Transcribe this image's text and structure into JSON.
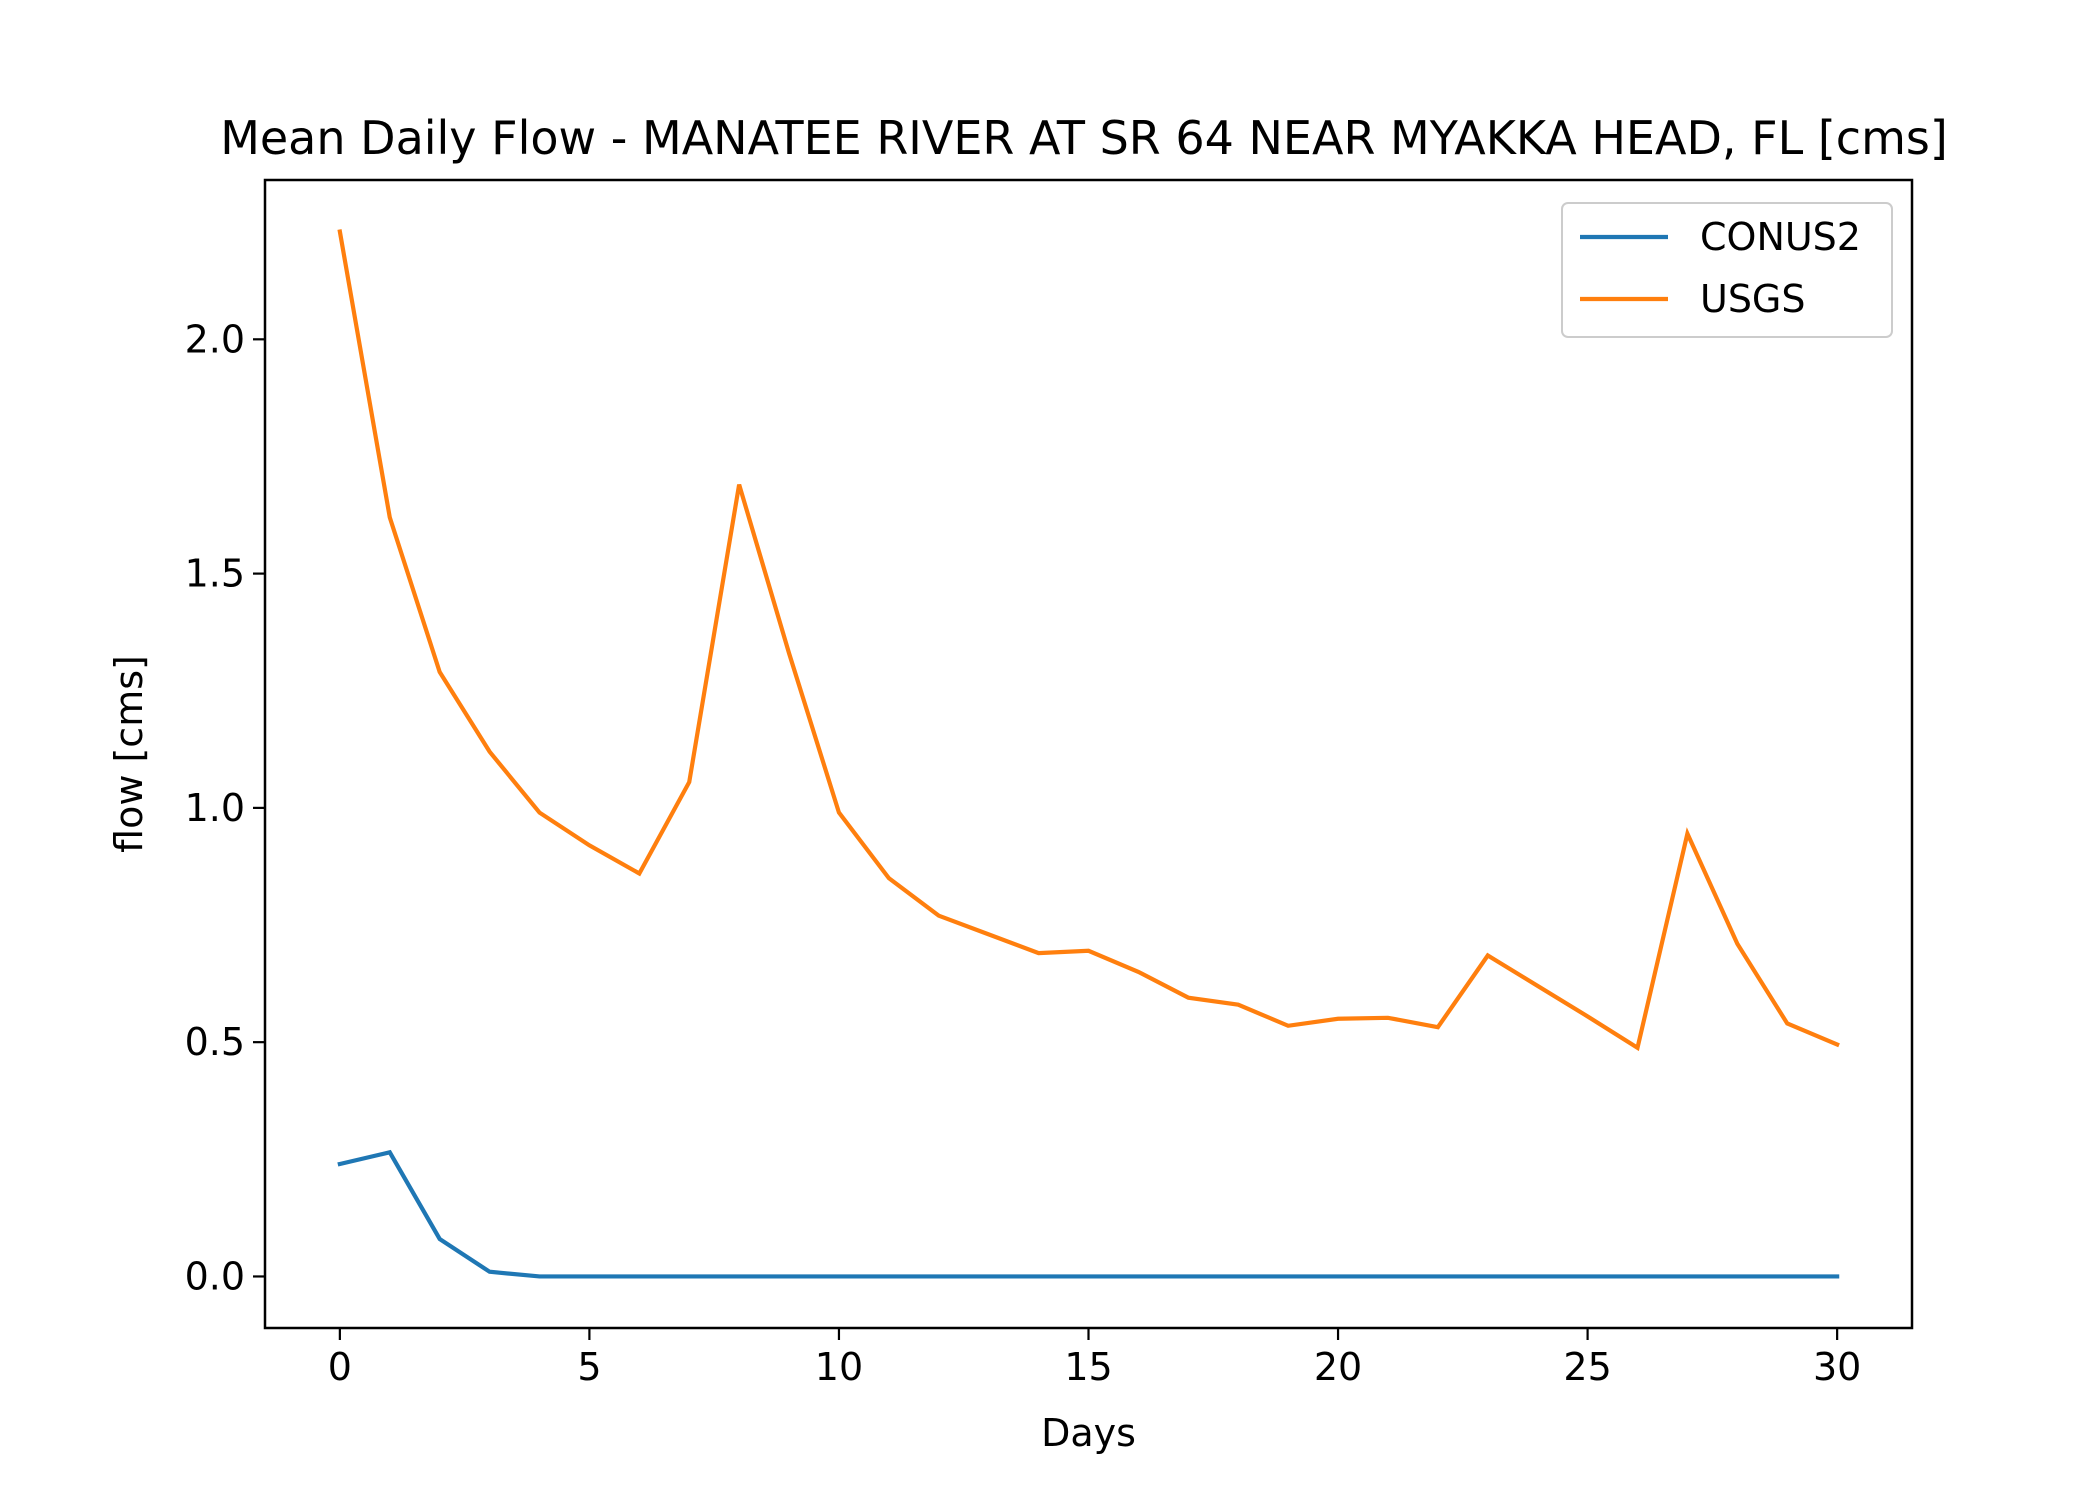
{
  "chart_data": {
    "type": "line",
    "title": "Mean Daily Flow - MANATEE RIVER AT SR 64 NEAR MYAKKA HEAD, FL [cms]",
    "xlabel": "Days",
    "ylabel": "flow [cms]",
    "xlim": [
      -1.5,
      31.5
    ],
    "ylim": [
      -0.11,
      2.34
    ],
    "xticks": [
      0,
      5,
      10,
      15,
      20,
      25,
      30
    ],
    "xtick_labels": [
      "0",
      "5",
      "10",
      "15",
      "20",
      "25",
      "30"
    ],
    "yticks": [
      0.0,
      0.5,
      1.0,
      1.5,
      2.0
    ],
    "ytick_labels": [
      "0.0",
      "0.5",
      "1.0",
      "1.5",
      "2.0"
    ],
    "grid": false,
    "legend_position": "top-right",
    "x": [
      0,
      1,
      2,
      3,
      4,
      5,
      6,
      7,
      8,
      9,
      10,
      11,
      12,
      13,
      14,
      15,
      16,
      17,
      18,
      19,
      20,
      21,
      22,
      23,
      24,
      25,
      26,
      27,
      28,
      29,
      30
    ],
    "series": [
      {
        "name": "CONUS2",
        "color": "#1f77b4",
        "values": [
          0.24,
          0.265,
          0.08,
          0.01,
          0.0,
          0.0,
          0.0,
          0.0,
          0.0,
          0.0,
          0.0,
          0.0,
          0.0,
          0.0,
          0.0,
          0.0,
          0.0,
          0.0,
          0.0,
          0.0,
          0.0,
          0.0,
          0.0,
          0.0,
          0.0,
          0.0,
          0.0,
          0.0,
          0.0,
          0.0,
          0.0
        ]
      },
      {
        "name": "USGS",
        "color": "#ff7f0e",
        "values": [
          2.23,
          1.62,
          1.29,
          1.12,
          0.99,
          0.92,
          0.86,
          1.055,
          1.69,
          1.33,
          0.99,
          0.85,
          0.77,
          0.73,
          0.69,
          0.695,
          0.65,
          0.595,
          0.58,
          0.535,
          0.55,
          0.552,
          0.532,
          0.685,
          0.62,
          0.555,
          0.488,
          0.945,
          0.71,
          0.54,
          0.495
        ]
      }
    ]
  }
}
